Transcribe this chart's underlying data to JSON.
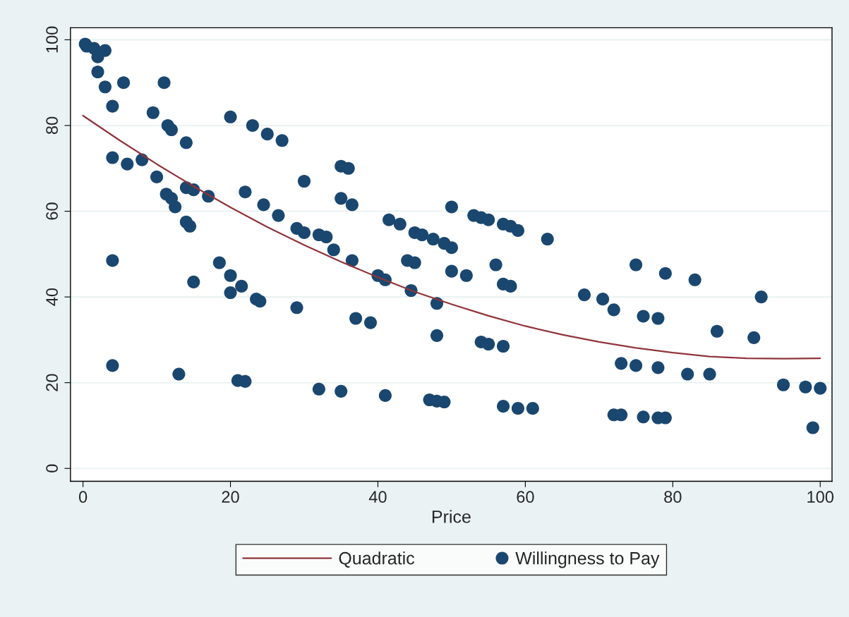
{
  "chart_data": {
    "type": "scatter",
    "xlabel": "Price",
    "xlim": [
      -1.7,
      101.6
    ],
    "ylim": [
      -3,
      102.8
    ],
    "xticks": [
      0,
      20,
      40,
      60,
      80,
      100
    ],
    "yticks": [
      0,
      20,
      40,
      60,
      80,
      100
    ],
    "grid": "y",
    "legend": "bottom",
    "series": [
      {
        "name": "Quadratic",
        "type": "line",
        "color": "#90353b",
        "line_style": "solid",
        "x": [
          0,
          5,
          10,
          15,
          20,
          25,
          30,
          35,
          40,
          45,
          50,
          55,
          60,
          65,
          70,
          75,
          80,
          85,
          90,
          95,
          100
        ],
        "values": [
          82.3,
          76.5,
          71.0,
          65.8,
          60.9,
          56.3,
          52.1,
          48.2,
          44.6,
          41.2,
          38.3,
          35.6,
          33.2,
          31.2,
          29.5,
          28.1,
          27.0,
          26.1,
          25.7,
          25.6,
          25.7
        ]
      },
      {
        "name": "Willingness to Pay",
        "marker": "circle",
        "color": "#1a476f",
        "x": [
          0.3,
          0.5,
          1.5,
          2,
          3,
          2,
          3,
          4,
          5.5,
          11,
          4,
          6,
          8,
          9.5,
          10,
          11.5,
          12,
          11.3,
          12,
          12.5,
          14,
          14,
          15,
          14,
          14.5,
          17,
          4,
          15,
          4,
          13,
          18.5,
          20,
          20,
          20,
          21.5,
          22,
          23.5,
          24,
          23,
          25,
          27,
          24.5,
          26.5,
          29,
          30,
          30,
          29,
          21,
          22,
          32,
          33,
          34,
          35,
          36,
          35,
          36.5,
          36.5,
          37,
          39,
          32,
          35,
          40,
          41,
          41.5,
          43,
          44,
          45,
          44.5,
          45,
          46,
          47.5,
          49,
          50,
          50,
          50,
          52,
          48,
          48,
          41,
          47,
          48,
          49,
          53,
          54,
          55,
          57,
          58,
          59,
          56,
          57,
          58,
          54,
          55,
          57,
          63,
          57,
          59,
          61,
          68,
          70.5,
          72,
          75,
          76,
          78,
          79,
          83,
          73,
          75,
          78,
          82,
          85,
          86,
          91,
          92,
          72,
          73,
          76,
          78,
          79,
          95,
          98,
          100,
          99
        ],
        "values": [
          99,
          98.5,
          98,
          96,
          97.5,
          92.5,
          89,
          84.5,
          90,
          90,
          72.5,
          71,
          72,
          83,
          68,
          80,
          79,
          64,
          63,
          61,
          76,
          65.5,
          65,
          57.5,
          56.5,
          63.5,
          48.5,
          43.5,
          24,
          22,
          48,
          45,
          41,
          82,
          42.5,
          64.5,
          39.5,
          39,
          80,
          78,
          76.5,
          61.5,
          59,
          56,
          55,
          67,
          37.5,
          20.5,
          20.3,
          54.5,
          54,
          51,
          70.5,
          70,
          63,
          61.5,
          48.5,
          35,
          34,
          18.5,
          18,
          45,
          44,
          58,
          57,
          48.5,
          48,
          41.5,
          55,
          54.5,
          53.5,
          52.5,
          51.5,
          61,
          46,
          45,
          38.5,
          31,
          17,
          16,
          15.7,
          15.5,
          59,
          58.5,
          58,
          57,
          56.5,
          55.5,
          47.5,
          43,
          42.5,
          29.5,
          29,
          28.5,
          53.5,
          14.5,
          14,
          14,
          40.5,
          39.5,
          37,
          47.5,
          35.5,
          35,
          45.5,
          44,
          24.5,
          24,
          23.5,
          22,
          22,
          32,
          30.5,
          40,
          12.5,
          12.5,
          12,
          11.8,
          11.8,
          19.5,
          19,
          18.7,
          9.5
        ]
      }
    ]
  }
}
